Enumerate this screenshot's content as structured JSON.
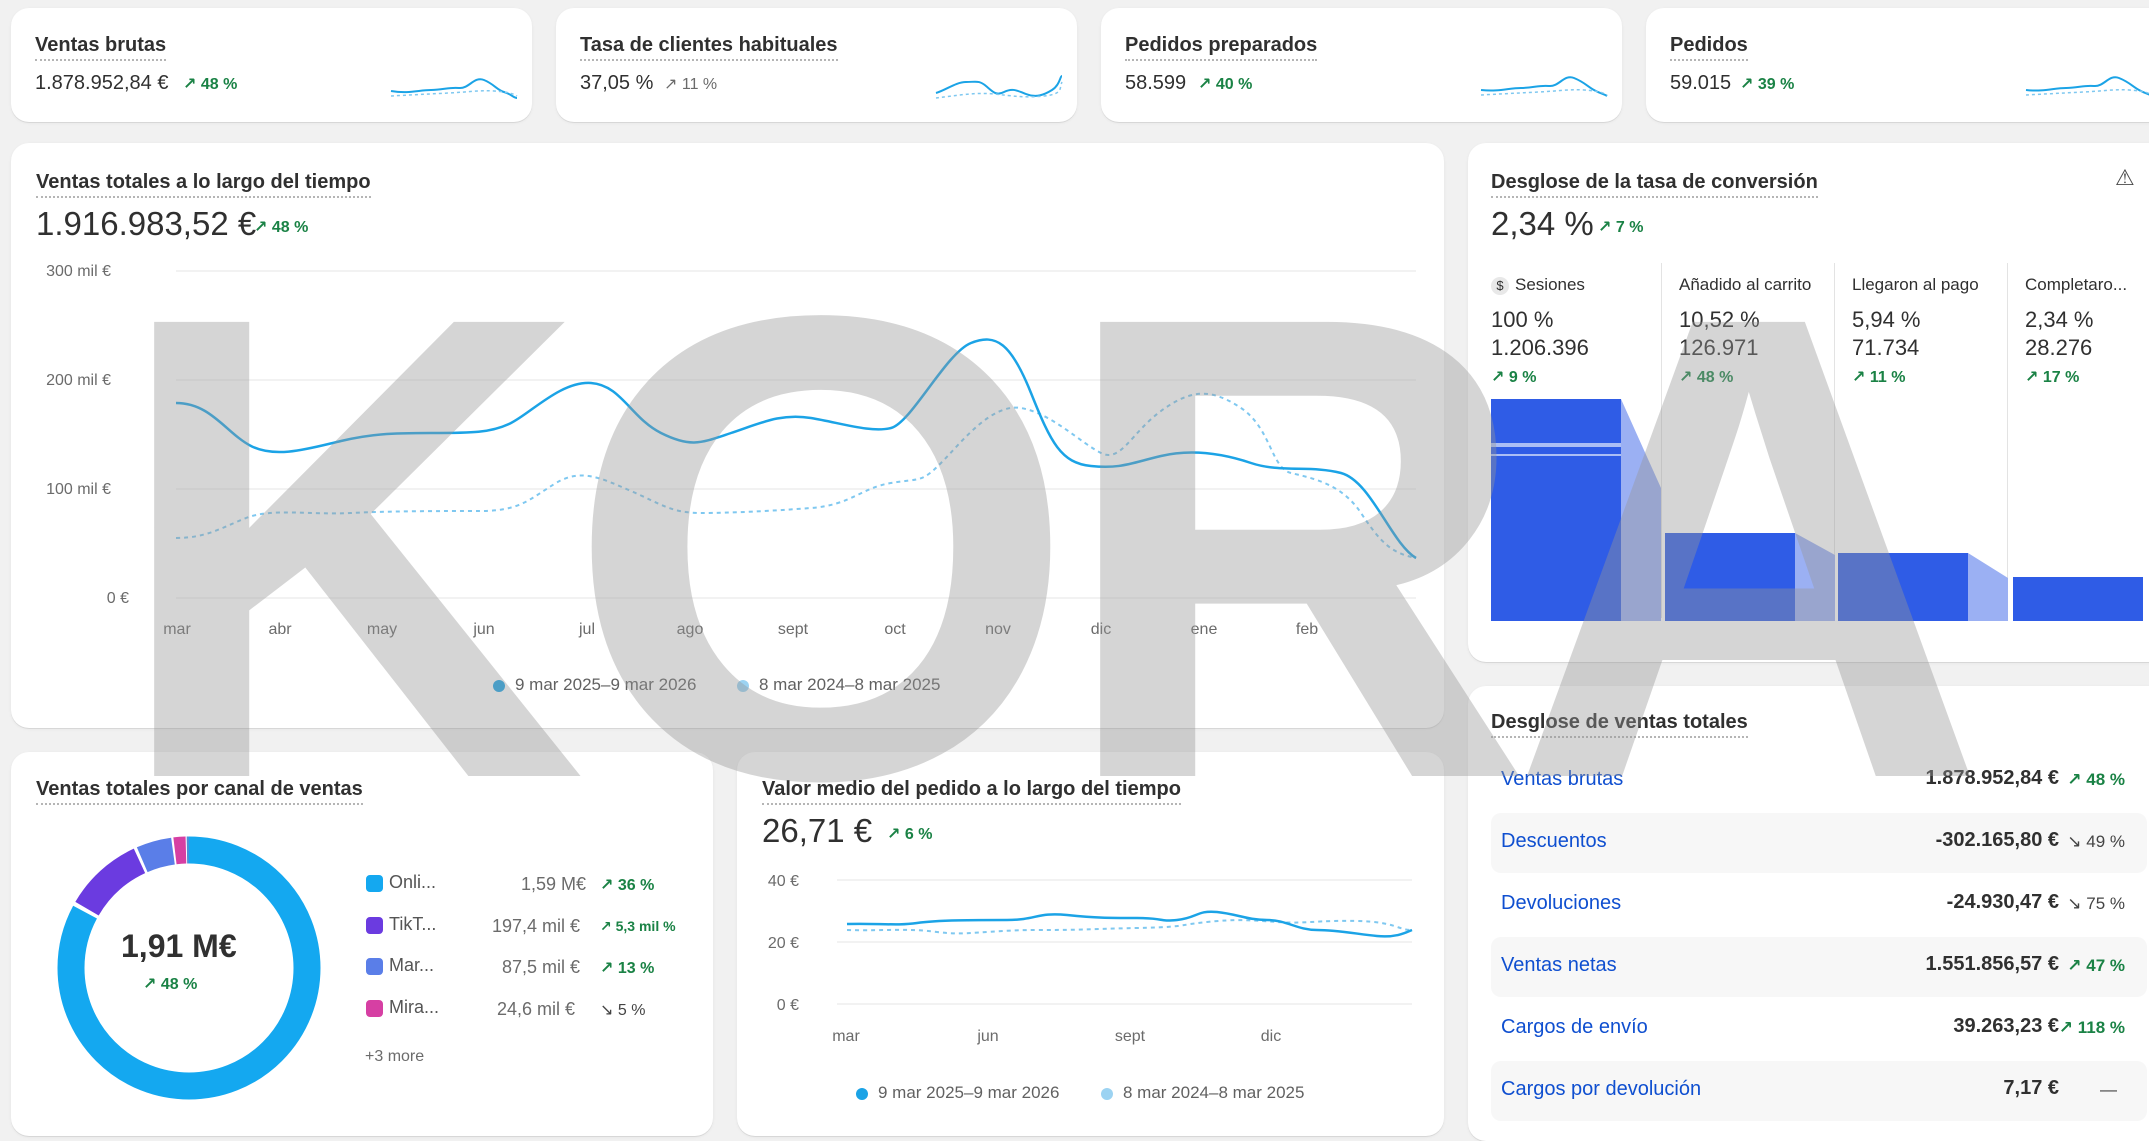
{
  "kpis": [
    {
      "label": "Ventas brutas",
      "value": "1.878.952,84 €",
      "change": "48 %",
      "dir": "up"
    },
    {
      "label": "Tasa de clientes habituales",
      "value": "37,05 %",
      "change": "11 %",
      "dir": "up-muted"
    },
    {
      "label": "Pedidos preparados",
      "value": "58.599",
      "change": "40 %",
      "dir": "up"
    },
    {
      "label": "Pedidos",
      "value": "59.015",
      "change": "39 %",
      "dir": "up"
    }
  ],
  "sales_over_time": {
    "title": "Ventas totales a lo largo del tiempo",
    "total": "1.916.983,52 €",
    "change": "48 %",
    "y_ticks": [
      "300 mil €",
      "200 mil €",
      "100 mil €",
      "0 €"
    ],
    "x_ticks": [
      "mar",
      "abr",
      "may",
      "jun",
      "jul",
      "ago",
      "sept",
      "oct",
      "nov",
      "dic",
      "ene",
      "feb"
    ],
    "legend_current": "9 mar 2025–9 mar 2026",
    "legend_previous": "8 mar 2024–8 mar 2025"
  },
  "conversion": {
    "title": "Desglose de la tasa de conversión",
    "rate": "2,34 %",
    "change": "7 %",
    "steps": [
      {
        "label": "Sesiones",
        "pct": "100 %",
        "count": "1.206.396",
        "change": "9 %"
      },
      {
        "label": "Añadido al carrito",
        "pct": "10,52 %",
        "count": "126.971",
        "change": "48 %"
      },
      {
        "label": "Llegaron al pago",
        "pct": "5,94 %",
        "count": "71.734",
        "change": "11 %"
      },
      {
        "label": "Completaro...",
        "pct": "2,34 %",
        "count": "28.276",
        "change": "17 %"
      }
    ]
  },
  "channel_sales": {
    "title": "Ventas totales por canal de ventas",
    "center_value": "1,91 M€",
    "center_change": "48 %",
    "items": [
      {
        "name": "Onli...",
        "value": "1,59 M€",
        "change": "36 %",
        "color": "#14a8f0"
      },
      {
        "name": "TikT...",
        "value": "197,4 mil €",
        "change": "5,3 mil %",
        "color": "#6b3be0"
      },
      {
        "name": "Mar...",
        "value": "87,5 mil €",
        "change": "13 %",
        "color": "#5a7ee8"
      },
      {
        "name": "Mira...",
        "value": "24,6 mil €",
        "change": "5 %",
        "color": "#d63fa3"
      }
    ],
    "more": "+3 more"
  },
  "aov": {
    "title": "Valor medio del pedido a lo largo del tiempo",
    "value": "26,71 €",
    "change": "6 %",
    "y_ticks": [
      "40 €",
      "20 €",
      "0 €"
    ],
    "x_ticks": [
      "mar",
      "jun",
      "sept",
      "dic"
    ],
    "legend_current": "9 mar 2025–9 mar 2026",
    "legend_previous": "8 mar 2024–8 mar 2025"
  },
  "breakdown": {
    "title": "Desglose de ventas totales",
    "rows": [
      {
        "label": "Ventas brutas",
        "amount": "1.878.952,84 €",
        "change": "48 %",
        "dir": "up"
      },
      {
        "label": "Descuentos",
        "amount": "-302.165,80 €",
        "change": "49 %",
        "dir": "down"
      },
      {
        "label": "Devoluciones",
        "amount": "-24.930,47 €",
        "change": "75 %",
        "dir": "down"
      },
      {
        "label": "Ventas netas",
        "amount": "1.551.856,57 €",
        "change": "47 %",
        "dir": "up"
      },
      {
        "label": "Cargos de envío",
        "amount": "39.263,23 €",
        "change": "118 %",
        "dir": "up"
      },
      {
        "label": "Cargos por devolución",
        "amount": "7,17 €",
        "change": "—",
        "dir": "none"
      }
    ]
  },
  "watermark": "KORA",
  "colors": {
    "accent": "#1ba3e6",
    "accent_light": "#7fc8f0",
    "positive": "#1a8245",
    "funnel": "#2f5ce6",
    "link": "#0f4fd0"
  }
}
